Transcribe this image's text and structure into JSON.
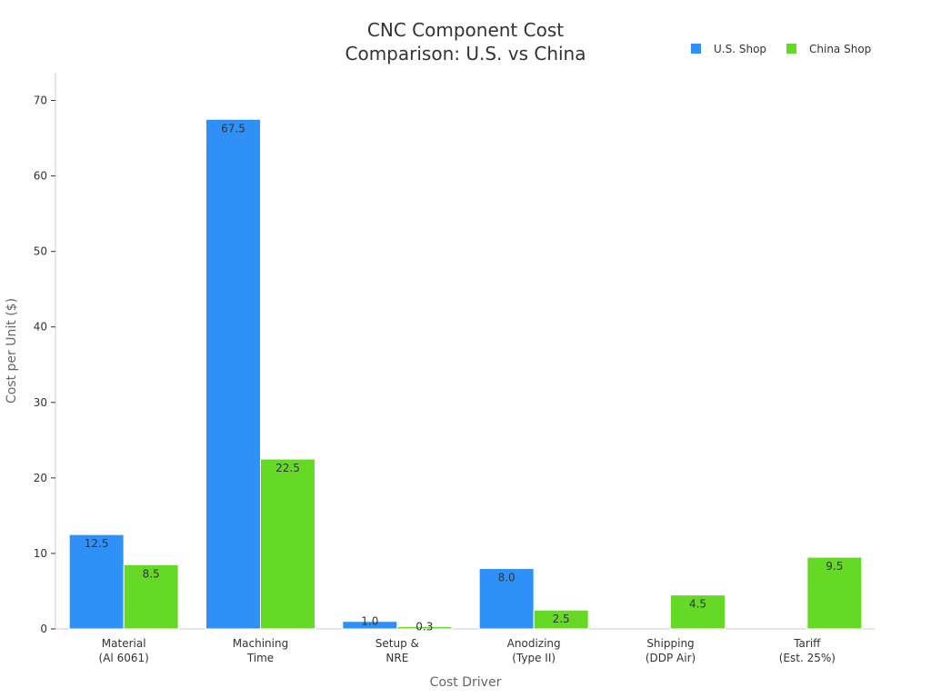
{
  "chart_data": {
    "type": "bar",
    "title": [
      "CNC Component Cost",
      "Comparison: U.S. vs China"
    ],
    "xlabel": "Cost Driver",
    "ylabel": "Cost per Unit ($)",
    "ylim": [
      0,
      70
    ],
    "yticks": [
      0,
      10,
      20,
      30,
      40,
      50,
      60,
      70
    ],
    "grid": false,
    "legend_position": "top-right",
    "categories": [
      [
        "Material",
        "(Al 6061)"
      ],
      [
        "Machining",
        "Time"
      ],
      [
        "Setup &",
        "NRE"
      ],
      [
        "Anodizing",
        "(Type II)"
      ],
      [
        "Shipping",
        "(DDP Air)"
      ],
      [
        "Tariff",
        "(Est. 25%)"
      ]
    ],
    "series": [
      {
        "name": "U.S. Shop",
        "color": "#2f91f7",
        "values": [
          12.5,
          67.5,
          1.0,
          8.0,
          0,
          0
        ],
        "labels": [
          "12.5",
          "67.5",
          "1.0",
          "8.0",
          "",
          ""
        ]
      },
      {
        "name": "China Shop",
        "color": "#66d927",
        "values": [
          8.5,
          22.5,
          0.3,
          2.5,
          4.5,
          9.5
        ],
        "labels": [
          "8.5",
          "22.5",
          "0.3",
          "2.5",
          "4.5",
          "9.5"
        ]
      }
    ]
  }
}
